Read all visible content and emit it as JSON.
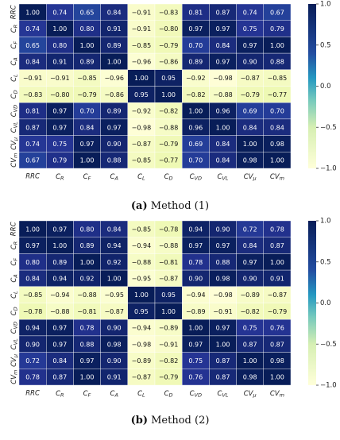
{
  "chart_data": [
    {
      "type": "heatmap",
      "caption_label": "(a)",
      "caption_text": " Method (1)",
      "rows": [
        "RRC",
        "C_R",
        "C_F",
        "C_A",
        "C_L",
        "C_D",
        "C_VD",
        "C_VL",
        "CV_μ",
        "CV_m"
      ],
      "columns": [
        "RRC",
        "C_R",
        "C_F",
        "C_A",
        "C_L",
        "C_D",
        "C_VD",
        "C_VL",
        "CV_μ",
        "CV_m"
      ],
      "values": [
        [
          1.0,
          0.74,
          0.65,
          0.84,
          -0.91,
          -0.83,
          0.81,
          0.87,
          0.74,
          0.67
        ],
        [
          0.74,
          1.0,
          0.8,
          0.91,
          -0.91,
          -0.8,
          0.97,
          0.97,
          0.75,
          0.79
        ],
        [
          0.65,
          0.8,
          1.0,
          0.89,
          -0.85,
          -0.79,
          0.7,
          0.84,
          0.97,
          1.0
        ],
        [
          0.84,
          0.91,
          0.89,
          1.0,
          -0.96,
          -0.86,
          0.89,
          0.97,
          0.9,
          0.88
        ],
        [
          -0.91,
          -0.91,
          -0.85,
          -0.96,
          1.0,
          0.95,
          -0.92,
          -0.98,
          -0.87,
          -0.85
        ],
        [
          -0.83,
          -0.8,
          -0.79,
          -0.86,
          0.95,
          1.0,
          -0.82,
          -0.88,
          -0.79,
          -0.77
        ],
        [
          0.81,
          0.97,
          0.7,
          0.89,
          -0.92,
          -0.82,
          1.0,
          0.96,
          0.69,
          0.7
        ],
        [
          0.87,
          0.97,
          0.84,
          0.97,
          -0.98,
          -0.88,
          0.96,
          1.0,
          0.84,
          0.84
        ],
        [
          0.74,
          0.75,
          0.97,
          0.9,
          -0.87,
          -0.79,
          0.69,
          0.84,
          1.0,
          0.98
        ],
        [
          0.67,
          0.79,
          1.0,
          0.88,
          -0.85,
          -0.77,
          0.7,
          0.84,
          0.98,
          1.0
        ]
      ],
      "value_range": [
        -1.0,
        1.0
      ],
      "colorbar_ticks": [
        "1.0",
        "0.5",
        "0.0",
        "−0.5",
        "−1.0"
      ],
      "colormap": "YlGnBu"
    },
    {
      "type": "heatmap",
      "caption_label": "(b)",
      "caption_text": " Method (2)",
      "rows": [
        "RRC",
        "C_R",
        "C_F",
        "C_A",
        "C_L",
        "C_D",
        "C_VD",
        "C_VL",
        "CV_μ",
        "CV_m"
      ],
      "columns": [
        "RRC",
        "C_R",
        "C_F",
        "C_A",
        "C_L",
        "C_D",
        "C_VD",
        "C_VL",
        "CV_μ",
        "CV_m"
      ],
      "values": [
        [
          1.0,
          0.97,
          0.8,
          0.84,
          -0.85,
          -0.78,
          0.94,
          0.9,
          0.72,
          0.78
        ],
        [
          0.97,
          1.0,
          0.89,
          0.94,
          -0.94,
          -0.88,
          0.97,
          0.97,
          0.84,
          0.87
        ],
        [
          0.8,
          0.89,
          1.0,
          0.92,
          -0.88,
          -0.81,
          0.78,
          0.88,
          0.97,
          1.0
        ],
        [
          0.84,
          0.94,
          0.92,
          1.0,
          -0.95,
          -0.87,
          0.9,
          0.98,
          0.9,
          0.91
        ],
        [
          -0.85,
          -0.94,
          -0.88,
          -0.95,
          1.0,
          0.95,
          -0.94,
          -0.98,
          -0.89,
          -0.87
        ],
        [
          -0.78,
          -0.88,
          -0.81,
          -0.87,
          0.95,
          1.0,
          -0.89,
          -0.91,
          -0.82,
          -0.79
        ],
        [
          0.94,
          0.97,
          0.78,
          0.9,
          -0.94,
          -0.89,
          1.0,
          0.97,
          0.75,
          0.76
        ],
        [
          0.9,
          0.97,
          0.88,
          0.98,
          -0.98,
          -0.91,
          0.97,
          1.0,
          0.87,
          0.87
        ],
        [
          0.72,
          0.84,
          0.97,
          0.9,
          -0.89,
          -0.82,
          0.75,
          0.87,
          1.0,
          0.98
        ],
        [
          0.78,
          0.87,
          1.0,
          0.91,
          -0.87,
          -0.79,
          0.76,
          0.87,
          0.98,
          1.0
        ]
      ],
      "value_range": [
        -1.0,
        1.0
      ],
      "colorbar_ticks": [
        "1.0",
        "0.5",
        "0.0",
        "−0.5",
        "−1.0"
      ],
      "colormap": "YlGnBu"
    }
  ]
}
